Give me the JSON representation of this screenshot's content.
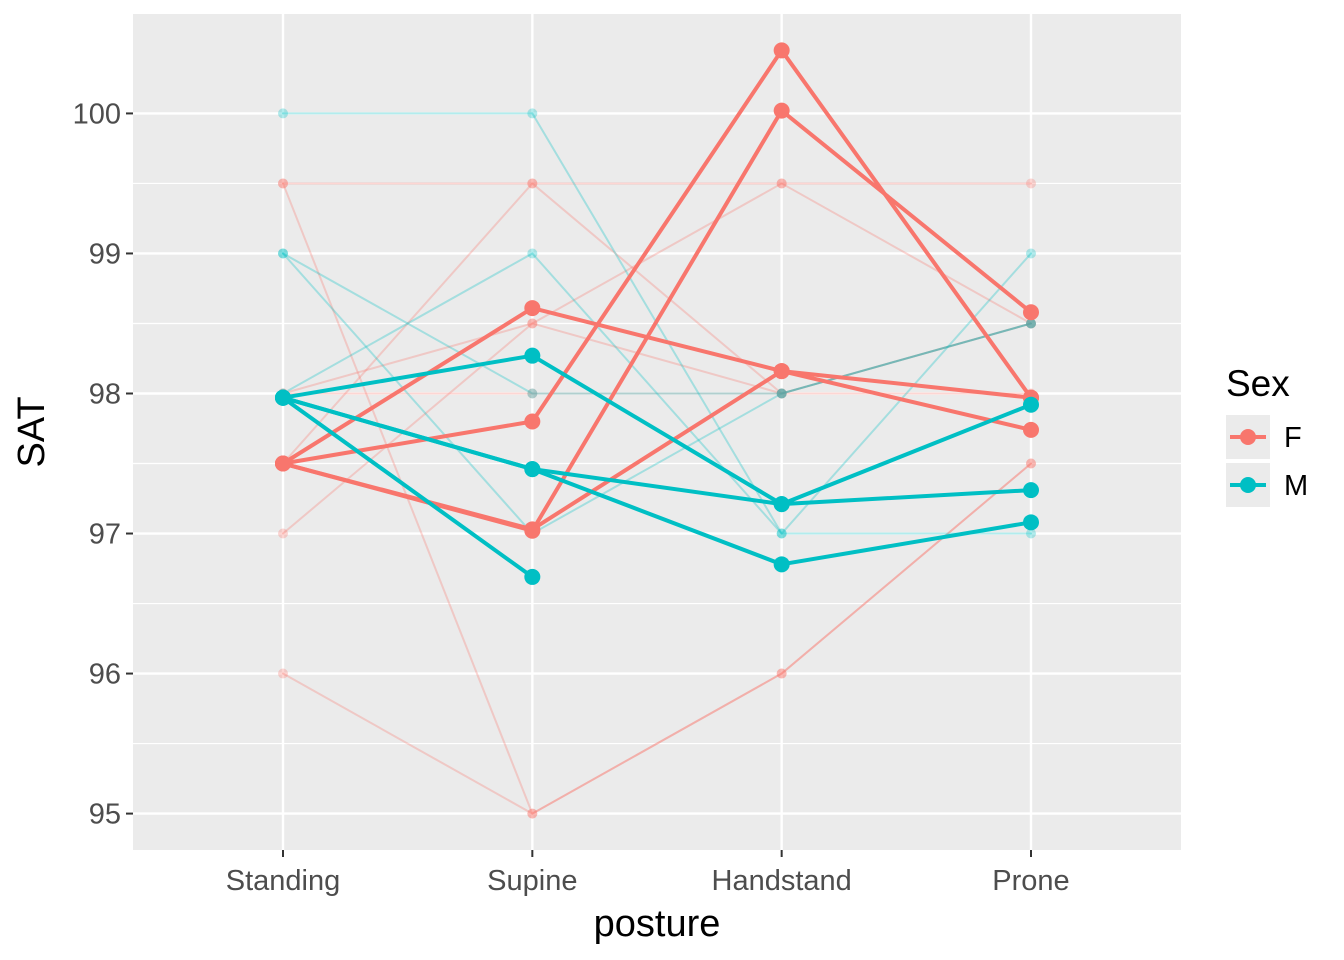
{
  "chart_data": {
    "type": "line",
    "xlabel": "posture",
    "ylabel": "SAT",
    "categories": [
      "Standing",
      "Supine",
      "Handstand",
      "Prone"
    ],
    "ylim": [
      94.74,
      100.71
    ],
    "yticks": [
      95,
      96,
      97,
      98,
      99,
      100
    ],
    "grid": true,
    "legend": {
      "title": "Sex",
      "position": "right",
      "entries": [
        {
          "label": "F",
          "color": "#F8766D"
        },
        {
          "label": "M",
          "color": "#00BFC4"
        }
      ]
    },
    "series": [
      {
        "group": "F",
        "emphasis": "faint",
        "values": [
          99.5,
          95.0,
          96.0,
          97.5
        ]
      },
      {
        "group": "F",
        "emphasis": "faint",
        "values": [
          96.0,
          95.0,
          96.0,
          97.5
        ]
      },
      {
        "group": "F",
        "emphasis": "faint",
        "values": [
          99.5,
          99.5,
          99.5,
          99.5
        ]
      },
      {
        "group": "F",
        "emphasis": "faint",
        "values": [
          97.0,
          98.5,
          99.5,
          98.5
        ]
      },
      {
        "group": "F",
        "emphasis": "faint",
        "values": [
          98.0,
          98.0,
          98.0,
          98.0
        ]
      },
      {
        "group": "F",
        "emphasis": "faint",
        "values": [
          97.5,
          99.5,
          98.0,
          98.5
        ]
      },
      {
        "group": "F",
        "emphasis": "faint",
        "values": [
          98.0,
          98.5,
          98.0,
          98.5
        ]
      },
      {
        "group": "M",
        "emphasis": "faint",
        "values": [
          100.0,
          100.0,
          97.0,
          99.0
        ]
      },
      {
        "group": "M",
        "emphasis": "faint",
        "values": [
          99.0,
          98.0,
          98.0,
          98.5
        ]
      },
      {
        "group": "M",
        "emphasis": "faint",
        "values": [
          98.0,
          99.0,
          97.0,
          97.0
        ]
      },
      {
        "group": "M",
        "emphasis": "faint",
        "values": [
          99.0,
          97.0,
          98.0,
          98.5
        ]
      },
      {
        "group": "F",
        "emphasis": "bold",
        "values": [
          97.5,
          98.61,
          98.16,
          97.74
        ]
      },
      {
        "group": "F",
        "emphasis": "bold",
        "values": [
          97.5,
          97.8,
          100.45,
          97.97
        ]
      },
      {
        "group": "F",
        "emphasis": "bold",
        "values": [
          97.5,
          97.02,
          100.02,
          98.58
        ]
      },
      {
        "group": "F",
        "emphasis": "bold",
        "values": [
          97.5,
          97.03,
          98.16,
          97.97
        ]
      },
      {
        "group": "M",
        "emphasis": "bold",
        "values": [
          97.97,
          98.27,
          97.21,
          97.31
        ]
      },
      {
        "group": "M",
        "emphasis": "bold",
        "values": [
          97.97,
          97.46,
          97.21,
          97.92
        ]
      },
      {
        "group": "M",
        "emphasis": "bold",
        "values": [
          97.97,
          97.46,
          96.78,
          97.08
        ]
      },
      {
        "group": "M",
        "emphasis": "bold",
        "values": [
          97.97,
          96.69,
          null,
          null
        ]
      }
    ]
  }
}
